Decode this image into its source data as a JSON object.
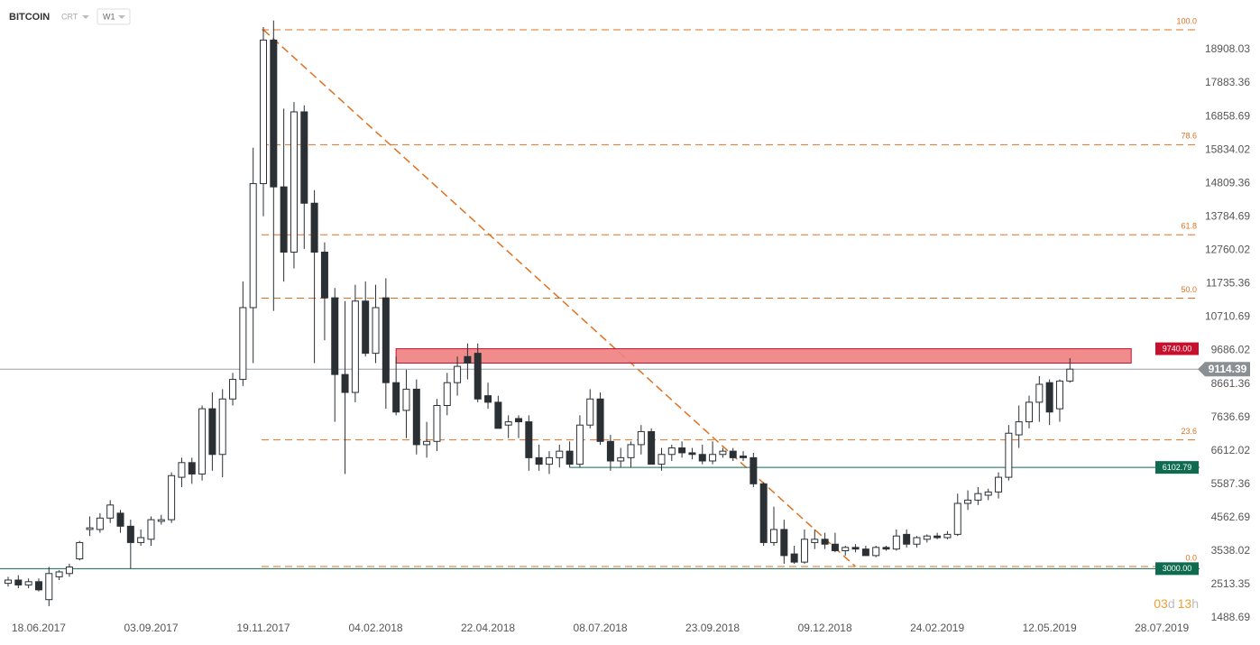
{
  "chart_data": {
    "type": "candlestick",
    "title": "BITCOIN",
    "instrument_type": "CRT",
    "timeframe": "W1",
    "categories": [
      null,
      null,
      null,
      "18.06.2017",
      null,
      null,
      null,
      null,
      null,
      null,
      null,
      null,
      null,
      null,
      "03.09.2017",
      null,
      null,
      null,
      null,
      null,
      null,
      null,
      null,
      null,
      null,
      "19.11.2017",
      null,
      null,
      null,
      null,
      null,
      null,
      null,
      null,
      null,
      null,
      "04.02.2018",
      null,
      null,
      null,
      null,
      null,
      null,
      null,
      null,
      null,
      null,
      "22.04.2018",
      null,
      null,
      null,
      null,
      null,
      null,
      null,
      null,
      null,
      null,
      "08.07.2018",
      null,
      null,
      null,
      null,
      null,
      null,
      null,
      null,
      null,
      null,
      "23.09.2018",
      null,
      null,
      null,
      null,
      null,
      null,
      null,
      null,
      null,
      null,
      "09.12.2018",
      null,
      null,
      null,
      null,
      null,
      null,
      null,
      null,
      null,
      null,
      "24.02.2019",
      null,
      null,
      null,
      null,
      null,
      null,
      null,
      null,
      null,
      null,
      "12.05.2019",
      null,
      null,
      null,
      null,
      null,
      null,
      null,
      null,
      null,
      null,
      "28.07.2019"
    ],
    "open": [
      2550,
      2650,
      2500,
      2600,
      2050,
      2750,
      2850,
      3300,
      4200,
      4200,
      4550,
      4700,
      4300,
      3800,
      3900,
      4450,
      4500,
      5800,
      6250,
      5900,
      7900,
      6500,
      8200,
      8800,
      11000,
      14800,
      19200,
      14700,
      12700,
      17000,
      14200,
      12700,
      11300,
      8950,
      8400,
      11200,
      9600,
      11300,
      8700,
      7850,
      8500,
      6800,
      6900,
      8000,
      8700,
      9500,
      9600,
      8300,
      8100,
      7400,
      7600,
      7500,
      6400,
      6200,
      6400,
      6600,
      6200,
      7400,
      8200,
      6900,
      6300,
      6400,
      6800,
      7200,
      6200,
      6500,
      6700,
      6550,
      6500,
      6300,
      6500,
      6600,
      6450,
      6400,
      5600,
      3800,
      4200,
      3450,
      3200,
      3800,
      3900,
      3750,
      3550,
      3650,
      3600,
      3400,
      3650,
      3600,
      4050,
      3750,
      3900,
      4000,
      3950,
      4050,
      5000,
      5100,
      5250,
      5350,
      5800,
      7100,
      7500,
      8100,
      8700,
      7900,
      8750,
      null,
      null,
      null,
      null,
      null,
      null,
      null,
      null,
      null
    ],
    "high": [
      2750,
      2800,
      2700,
      2700,
      3050,
      2950,
      3150,
      3850,
      4600,
      4700,
      5100,
      4800,
      4500,
      4200,
      4600,
      4650,
      5950,
      6400,
      6400,
      8000,
      8400,
      8500,
      9000,
      11800,
      15900,
      19600,
      19800,
      17100,
      17300,
      17200,
      14600,
      13000,
      11600,
      11200,
      11700,
      11800,
      11700,
      11900,
      9500,
      9100,
      8800,
      7500,
      8200,
      9000,
      9500,
      9900,
      9900,
      8700,
      8300,
      7700,
      7700,
      7700,
      6800,
      6600,
      6800,
      6900,
      7700,
      8500,
      8400,
      7100,
      6700,
      6900,
      7400,
      7300,
      6700,
      6800,
      6900,
      6700,
      6800,
      6900,
      6700,
      6700,
      6600,
      6550,
      5650,
      4900,
      4500,
      3700,
      4200,
      4200,
      4100,
      4100,
      3700,
      3750,
      3700,
      3700,
      3700,
      4200,
      4200,
      4000,
      4050,
      4100,
      4150,
      5300,
      5400,
      5500,
      5450,
      5950,
      7400,
      8000,
      8300,
      8900,
      8800,
      8800,
      9450,
      null,
      null,
      null,
      null,
      null,
      null,
      null,
      null,
      null
    ],
    "low": [
      2450,
      2400,
      2400,
      2300,
      1850,
      2650,
      2750,
      3250,
      4000,
      4100,
      4400,
      4100,
      3000,
      3700,
      3700,
      4350,
      4400,
      5500,
      5600,
      5700,
      6000,
      5800,
      8000,
      8600,
      9300,
      13800,
      10900,
      11800,
      12200,
      12800,
      9300,
      10000,
      7500,
      5900,
      8100,
      9500,
      9300,
      7900,
      7700,
      7000,
      6500,
      6400,
      6600,
      7700,
      8300,
      8800,
      8100,
      7900,
      7300,
      7000,
      7000,
      6000,
      6000,
      5900,
      6100,
      6100,
      6100,
      7300,
      6800,
      6000,
      6100,
      6100,
      6500,
      6200,
      6000,
      6300,
      6400,
      6350,
      6200,
      6200,
      6400,
      6300,
      6300,
      5500,
      3700,
      3700,
      3150,
      3150,
      3150,
      3600,
      3600,
      3500,
      3400,
      3500,
      3400,
      3350,
      3550,
      3550,
      3650,
      3650,
      3800,
      3900,
      3900,
      4000,
      4800,
      4950,
      5100,
      5150,
      5700,
      6700,
      7300,
      7500,
      7400,
      7500,
      8700,
      null,
      null,
      null,
      null,
      null,
      null,
      null,
      null,
      null
    ],
    "close": [
      2650,
      2500,
      2600,
      2350,
      2850,
      2900,
      3050,
      3800,
      4250,
      4550,
      4950,
      4300,
      3800,
      3950,
      4500,
      4500,
      5850,
      6250,
      5900,
      7900,
      6500,
      8200,
      8800,
      11000,
      14800,
      19200,
      14700,
      12700,
      17000,
      14200,
      12700,
      11300,
      8950,
      8400,
      11200,
      9600,
      11000,
      8700,
      7800,
      8500,
      6800,
      6900,
      8000,
      8700,
      9200,
      9300,
      8200,
      8100,
      7300,
      7500,
      7500,
      6400,
      6200,
      6400,
      6600,
      6200,
      7400,
      8200,
      6900,
      6300,
      6400,
      6800,
      7200,
      6200,
      6500,
      6700,
      6550,
      6500,
      6300,
      6500,
      6600,
      6400,
      6400,
      5600,
      3800,
      4200,
      3400,
      3200,
      3900,
      3900,
      3750,
      3550,
      3650,
      3600,
      3400,
      3650,
      3600,
      4000,
      3750,
      3950,
      4000,
      3950,
      4050,
      5000,
      5100,
      5300,
      5350,
      5800,
      7150,
      7500,
      8100,
      8650,
      7800,
      8750,
      9114.39,
      null,
      null,
      null,
      null,
      null,
      null,
      null,
      null,
      null
    ],
    "ylim": [
      1406,
      20428
    ],
    "yticks": [
      1488.69,
      2513.35,
      3538.02,
      4562.69,
      5587.36,
      6612.02,
      7636.69,
      8661.36,
      9686.02,
      10710.69,
      11735.36,
      12760.02,
      13784.69,
      14809.36,
      15834.02,
      16858.69,
      17883.36,
      18908.03
    ],
    "colors": {
      "up": "#ffffff",
      "down": "#2b3035",
      "outline": "#2b3035",
      "fib": "#e07020",
      "support": "#0e6b4f",
      "zone": "#f08080",
      "zone_label": "#c8102e",
      "price": "#8a8f94"
    },
    "current_price": 9114.39,
    "zone": {
      "top": {
        "value": 9740,
        "label": "9740.00"
      },
      "bottom": 9300,
      "start": 38,
      "end": 110
    },
    "supports": [
      {
        "value": 6102.79,
        "start": 55
      },
      {
        "value": {
          "value": 3000,
          "label": "3000.00"
        }
      }
    ],
    "fib": {
      "high": 19516,
      "low": 3064,
      "start": 25,
      "levels": [
        {
          "value": 100,
          "label": "100.0"
        },
        78.6,
        61.8,
        {
          "value": 50,
          "label": "50.0"
        },
        23.6,
        {
          "value": 0,
          "label": "0.0"
        }
      ]
    },
    "trendline": {
      "start": [
        25,
        19516
      ],
      "end": [
        83,
        3064
      ]
    },
    "countdown": [
      "03",
      "d",
      "13",
      "h"
    ]
  }
}
